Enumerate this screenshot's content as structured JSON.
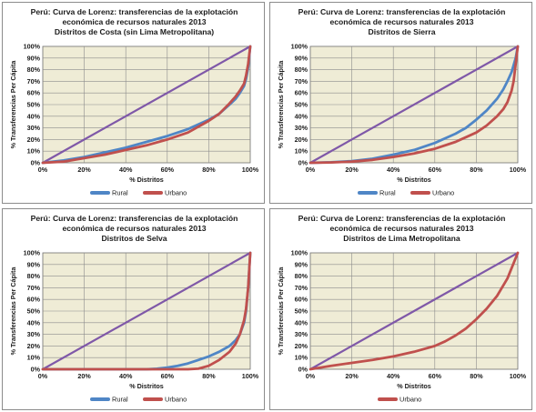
{
  "colors": {
    "equality": "#7f58a8",
    "rural": "#4f86c6",
    "urbano": "#c0504d",
    "plot_bg": "#efecd6",
    "grid": "#8c8c8c"
  },
  "chart_data": [
    {
      "type": "line",
      "title": [
        "Perú: Curva de Lorenz: transferencias de la explotación",
        "económica de recursos naturales 2013",
        "Distritos de Costa (sin Lima Metropolitana)"
      ],
      "xlabel": "% Distritos",
      "ylabel": "% Transferencias Per Cápita",
      "xlim": [
        0,
        100
      ],
      "ylim": [
        0,
        100
      ],
      "x_ticks": [
        "0%",
        "20%",
        "40%",
        "60%",
        "80%",
        "100%"
      ],
      "y_ticks": [
        "0%",
        "10%",
        "20%",
        "30%",
        "40%",
        "50%",
        "60%",
        "70%",
        "80%",
        "90%",
        "100%"
      ],
      "grid": true,
      "legend_position": "bottom",
      "series": [
        {
          "name": "",
          "role": "equality",
          "x": [
            0,
            100
          ],
          "y": [
            0,
            100
          ]
        },
        {
          "name": "Rural",
          "role": "rural",
          "x": [
            0,
            10,
            20,
            30,
            40,
            50,
            60,
            70,
            80,
            85,
            90,
            93,
            95,
            97,
            98,
            99,
            100
          ],
          "y": [
            0,
            2,
            5,
            9,
            13,
            18,
            23,
            29,
            37,
            42,
            50,
            55,
            60,
            66,
            72,
            82,
            100
          ]
        },
        {
          "name": "Urbano",
          "role": "urbano",
          "x": [
            0,
            10,
            20,
            30,
            40,
            50,
            60,
            70,
            80,
            85,
            90,
            93,
            95,
            97,
            98,
            99,
            100
          ],
          "y": [
            0,
            1,
            4,
            7,
            11,
            15,
            20,
            26,
            36,
            42,
            51,
            57,
            62,
            68,
            75,
            85,
            100
          ]
        }
      ]
    },
    {
      "type": "line",
      "title": [
        "Perú: Curva de Lorenz: transferencias de la explotación",
        "económica de recursos naturales   2013",
        "Distritos de Sierra"
      ],
      "xlabel": "% Distritos",
      "ylabel": "% Transferencias Per Cápita",
      "xlim": [
        0,
        100
      ],
      "ylim": [
        0,
        100
      ],
      "x_ticks": [
        "0%",
        "20%",
        "40%",
        "60%",
        "80%",
        "100%"
      ],
      "y_ticks": [
        "0%",
        "10%",
        "20%",
        "30%",
        "40%",
        "50%",
        "60%",
        "70%",
        "80%",
        "90%",
        "100%"
      ],
      "grid": true,
      "legend_position": "bottom",
      "series": [
        {
          "name": "",
          "role": "equality",
          "x": [
            0,
            100
          ],
          "y": [
            0,
            100
          ]
        },
        {
          "name": "Rural",
          "role": "rural",
          "x": [
            0,
            10,
            20,
            30,
            40,
            50,
            60,
            70,
            75,
            80,
            85,
            90,
            93,
            95,
            97,
            99,
            100
          ],
          "y": [
            0,
            0.5,
            1.5,
            3.5,
            7,
            11,
            17,
            25,
            30,
            37,
            45,
            55,
            63,
            70,
            78,
            90,
            100
          ]
        },
        {
          "name": "Urbano",
          "role": "urbano",
          "x": [
            0,
            10,
            20,
            30,
            40,
            50,
            60,
            70,
            80,
            85,
            90,
            93,
            95,
            97,
            98,
            99,
            100
          ],
          "y": [
            0,
            0.3,
            1,
            2.5,
            5,
            8,
            12,
            18,
            26,
            32,
            40,
            46,
            52,
            62,
            70,
            85,
            100
          ]
        }
      ]
    },
    {
      "type": "line",
      "title": [
        "Perú: Curva de Lorenz: transferencias de la explotación",
        "económica de recursos naturales  2013",
        "Distritos de Selva"
      ],
      "xlabel": "% Distritos",
      "ylabel": "% Transferencias Per Cápita",
      "xlim": [
        0,
        100
      ],
      "ylim": [
        0,
        100
      ],
      "x_ticks": [
        "0%",
        "20%",
        "40%",
        "60%",
        "80%",
        "100%"
      ],
      "y_ticks": [
        "0%",
        "10%",
        "20%",
        "30%",
        "40%",
        "50%",
        "60%",
        "70%",
        "80%",
        "90%",
        "100%"
      ],
      "grid": true,
      "legend_position": "bottom",
      "series": [
        {
          "name": "",
          "role": "equality",
          "x": [
            0,
            100
          ],
          "y": [
            0,
            100
          ]
        },
        {
          "name": "Rural",
          "role": "rural",
          "x": [
            0,
            10,
            20,
            30,
            40,
            50,
            55,
            60,
            65,
            70,
            75,
            80,
            85,
            90,
            93,
            95,
            97,
            98,
            99,
            100
          ],
          "y": [
            0,
            0,
            0,
            0,
            0,
            0,
            0.5,
            1.5,
            3,
            5,
            8,
            11,
            15,
            20,
            25,
            30,
            40,
            50,
            70,
            100
          ]
        },
        {
          "name": "Urbano",
          "role": "urbano",
          "x": [
            0,
            10,
            20,
            30,
            40,
            50,
            60,
            70,
            75,
            80,
            85,
            90,
            93,
            95,
            97,
            98,
            99,
            100
          ],
          "y": [
            0,
            0,
            0,
            0,
            0,
            0,
            0,
            0,
            0.5,
            3,
            8,
            15,
            22,
            30,
            42,
            52,
            70,
            100
          ]
        }
      ]
    },
    {
      "type": "line",
      "title": [
        "Perú: Curva de Lorenz: transferencias de la explotación",
        "económica de recursos naturales 2013",
        "Distritos de Lima Metropolitana"
      ],
      "xlabel": "% Distritos",
      "ylabel": "% Transferencias Per Cápita",
      "xlim": [
        0,
        100
      ],
      "ylim": [
        0,
        100
      ],
      "x_ticks": [
        "0%",
        "20%",
        "40%",
        "60%",
        "80%",
        "100%"
      ],
      "y_ticks": [
        "0%",
        "10%",
        "20%",
        "30%",
        "40%",
        "50%",
        "60%",
        "70%",
        "80%",
        "90%",
        "100%"
      ],
      "grid": true,
      "legend_position": "bottom",
      "series": [
        {
          "name": "",
          "role": "equality",
          "x": [
            0,
            100
          ],
          "y": [
            0,
            100
          ]
        },
        {
          "name": "Urbano",
          "role": "urbano",
          "x": [
            0,
            10,
            20,
            30,
            40,
            50,
            60,
            65,
            70,
            75,
            80,
            85,
            90,
            95,
            100
          ],
          "y": [
            0,
            3,
            5.5,
            8,
            11,
            15,
            20,
            24,
            29,
            35,
            43,
            52,
            63,
            78,
            100
          ]
        }
      ]
    }
  ]
}
